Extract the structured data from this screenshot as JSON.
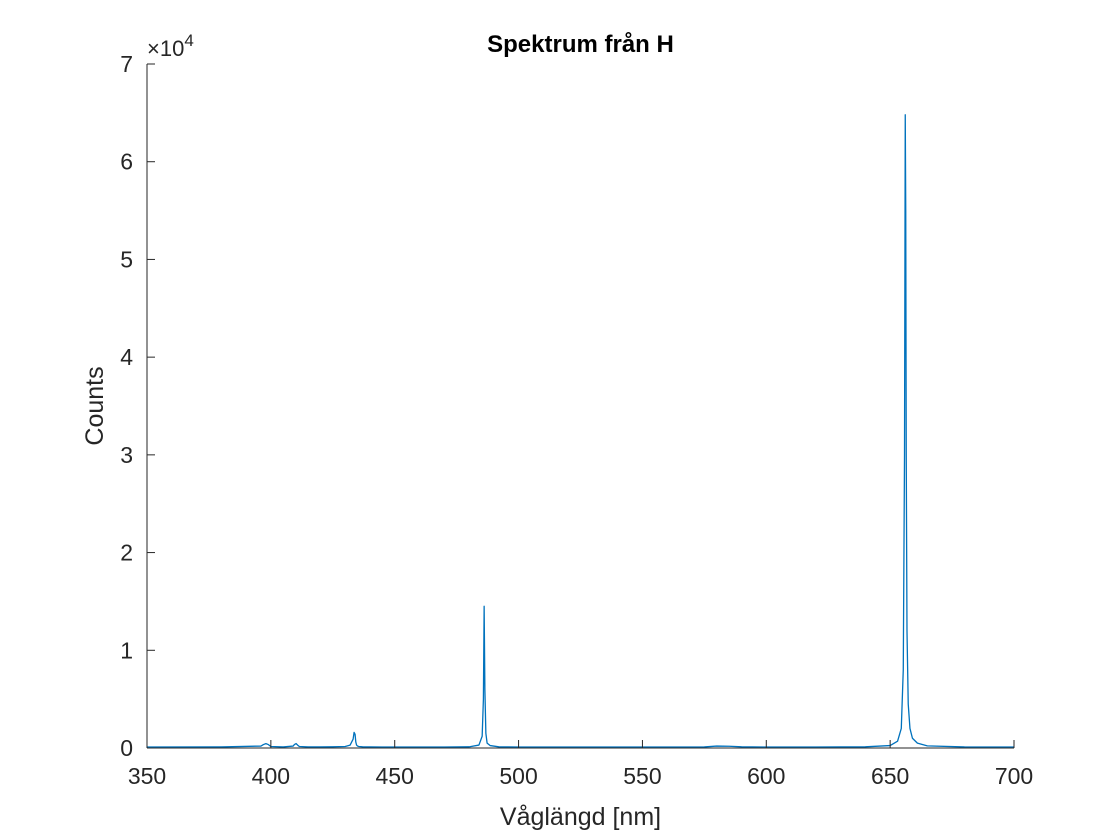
{
  "chart_data": {
    "type": "line",
    "title": "Spektrum från H",
    "xlabel": "Våglängd [nm]",
    "ylabel": "Counts",
    "xlim": [
      350,
      700
    ],
    "ylim": [
      0,
      70000
    ],
    "x_ticks": [
      350,
      400,
      450,
      500,
      550,
      600,
      650,
      700
    ],
    "x_tick_labels": [
      "350",
      "400",
      "450",
      "500",
      "550",
      "600",
      "650",
      "700"
    ],
    "y_ticks": [
      0,
      10000,
      20000,
      30000,
      40000,
      50000,
      60000,
      70000
    ],
    "y_tick_labels": [
      "0",
      "1",
      "2",
      "3",
      "4",
      "5",
      "6",
      "7"
    ],
    "y_exponent_base": "×10",
    "y_exponent_power": "4",
    "grid": false,
    "line_color": "#0072BD",
    "axis_color": "#262626",
    "series": [
      {
        "x": [
          350,
          380,
          396,
          397,
          398,
          399,
          400,
          405,
          409,
          409.5,
          410.2,
          410.8,
          411.5,
          415,
          420,
          425,
          430,
          432,
          433.2,
          433.6,
          434.0,
          434.3,
          434.6,
          435.0,
          435.5,
          437,
          440,
          450,
          460,
          470,
          480,
          484,
          485.3,
          485.8,
          486.1,
          486.4,
          486.8,
          487.3,
          488.5,
          492,
          500,
          520,
          550,
          575,
          580,
          585,
          590,
          600,
          620,
          640,
          650,
          653,
          654.5,
          655.3,
          655.8,
          656.1,
          656.3,
          656.5,
          656.8,
          657.3,
          658,
          659,
          661,
          665,
          680,
          700
        ],
        "y": [
          100,
          110,
          200,
          350,
          450,
          350,
          150,
          110,
          200,
          350,
          450,
          300,
          150,
          110,
          110,
          120,
          150,
          300,
          900,
          1600,
          1400,
          600,
          300,
          200,
          150,
          120,
          110,
          100,
          100,
          100,
          120,
          300,
          1200,
          5000,
          14500,
          6000,
          1500,
          500,
          250,
          120,
          100,
          100,
          100,
          110,
          200,
          180,
          120,
          100,
          100,
          120,
          250,
          700,
          2000,
          8000,
          30000,
          64800,
          55000,
          30000,
          12000,
          4500,
          2000,
          1000,
          500,
          220,
          110,
          100
        ]
      }
    ]
  }
}
